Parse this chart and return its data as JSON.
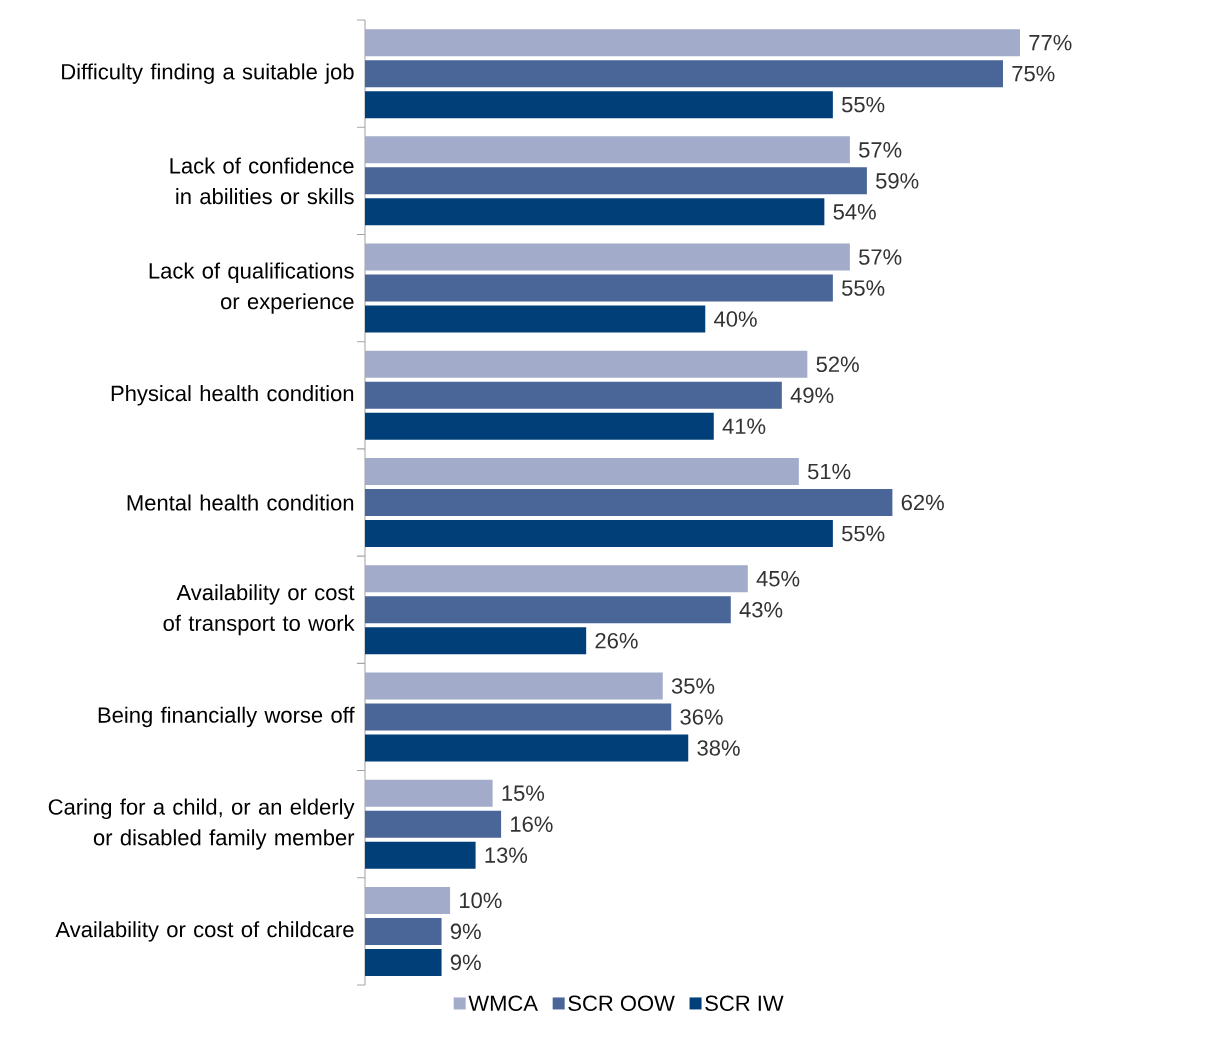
{
  "chart_data": {
    "type": "bar",
    "orientation": "horizontal",
    "categories": [
      "Difficulty finding a suitable job",
      "Lack of confidence in abilities or skills",
      "Lack of qualifications or experience",
      "Physical health condition",
      "Mental health condition",
      "Availability or cost of transport to work",
      "Being financially worse off",
      "Caring for a child, or an elderly or disabled family member",
      "Availability or cost of childcare"
    ],
    "series": [
      {
        "name": "WMCA",
        "color": "#a2abc9",
        "values": [
          77,
          57,
          57,
          52,
          51,
          45,
          35,
          15,
          10
        ],
        "value_labels": [
          "77%",
          "57%",
          "57%",
          "52%",
          "51%",
          "45%",
          "35%",
          "15%",
          "10%"
        ]
      },
      {
        "name": "SCR OOW",
        "color": "#4a6598",
        "values": [
          75,
          59,
          55,
          49,
          62,
          43,
          36,
          16,
          9
        ],
        "value_labels": [
          "75%",
          "59%",
          "55%",
          "49%",
          "62%",
          "43%",
          "36%",
          "16%",
          "9%"
        ]
      },
      {
        "name": "SCR IW",
        "color": "#003f78",
        "values": [
          55,
          54,
          40,
          41,
          55,
          26,
          38,
          13,
          9
        ],
        "value_labels": [
          "55%",
          "54%",
          "40%",
          "41%",
          "55%",
          "26%",
          "38%",
          "13%",
          "9%"
        ]
      }
    ],
    "legend": "bottom"
  }
}
